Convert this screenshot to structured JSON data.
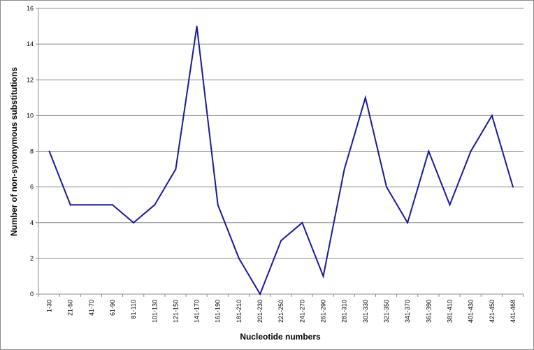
{
  "chart_data": {
    "type": "line",
    "title": "",
    "xlabel": "Nucleotide numbers",
    "ylabel": "Number of non-synonymous substitutions",
    "ylim": [
      0,
      16
    ],
    "y_ticks": [
      "0",
      "2",
      "4",
      "6",
      "8",
      "10",
      "12",
      "14",
      "16"
    ],
    "grid": true,
    "legend": "none",
    "categories": [
      "1-30",
      "21-50",
      "41-70",
      "61-90",
      "81-110",
      "101-130",
      "121-150",
      "141-170",
      "161-190",
      "181-210",
      "201-230",
      "221-250",
      "241-270",
      "261-290",
      "281-310",
      "301-330",
      "321-350",
      "341-370",
      "361-390",
      "381-410",
      "401-430",
      "421-450",
      "441-468"
    ],
    "series": [
      {
        "values": [
          8,
          5,
          5,
          5,
          4,
          5,
          7,
          15,
          5,
          2,
          0,
          3,
          4,
          1,
          7,
          11,
          6,
          4,
          8,
          5,
          8,
          10,
          6
        ],
        "color": "#1a1a9c"
      }
    ],
    "colors": {
      "gridline": "#8c8c8c",
      "axis": "#8c8c8c",
      "frame": "#8c8c8c"
    }
  }
}
